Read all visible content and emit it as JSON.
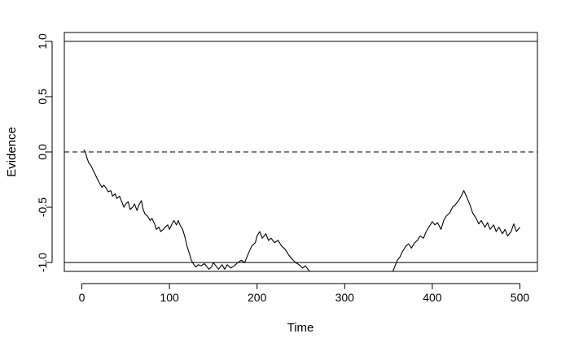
{
  "chart_data": {
    "type": "line",
    "title": "",
    "xlabel": "Time",
    "ylabel": "Evidence",
    "xlim": [
      -20,
      520
    ],
    "ylim": [
      -1.08,
      1.08
    ],
    "xticks": [
      0,
      100,
      200,
      300,
      400,
      500
    ],
    "xtick_labels": [
      "0",
      "100",
      "200",
      "300",
      "400",
      "500"
    ],
    "yticks": [
      -1.0,
      -0.5,
      0.0,
      0.5,
      1.0
    ],
    "ytick_labels": [
      "-1.0",
      "-0.5",
      "0.0",
      "0.5",
      "1.0"
    ],
    "grid": false,
    "legend": "none",
    "reference_lines": [
      {
        "y": 1.0,
        "style": "solid"
      },
      {
        "y": 0.0,
        "style": "dashed"
      },
      {
        "y": -1.0,
        "style": "solid"
      }
    ],
    "series": [
      {
        "color": "#000000",
        "x": [
          2,
          4,
          6,
          8,
          10,
          12,
          15,
          18,
          20,
          23,
          25,
          28,
          30,
          33,
          35,
          38,
          40,
          43,
          45,
          48,
          50,
          53,
          55,
          58,
          60,
          63,
          65,
          68,
          70,
          72,
          75,
          78,
          80,
          83,
          85,
          88,
          90,
          93,
          95,
          98,
          100,
          103,
          105,
          108,
          110,
          112,
          115,
          118,
          120,
          122,
          125,
          128,
          130,
          133,
          136,
          140,
          145,
          148,
          150,
          153,
          156,
          160,
          163,
          166,
          170,
          174,
          178,
          182,
          186,
          190,
          194,
          198,
          200,
          203,
          206,
          210,
          213,
          216,
          220,
          224,
          228,
          232,
          236,
          240,
          244,
          248,
          252,
          255,
          258,
          260
        ],
        "y": [
          0.02,
          0.0,
          -0.06,
          -0.1,
          -0.12,
          -0.15,
          -0.2,
          -0.25,
          -0.28,
          -0.32,
          -0.3,
          -0.33,
          -0.36,
          -0.35,
          -0.4,
          -0.38,
          -0.42,
          -0.4,
          -0.44,
          -0.5,
          -0.47,
          -0.45,
          -0.52,
          -0.5,
          -0.47,
          -0.53,
          -0.48,
          -0.44,
          -0.52,
          -0.56,
          -0.58,
          -0.62,
          -0.6,
          -0.65,
          -0.7,
          -0.68,
          -0.72,
          -0.7,
          -0.68,
          -0.66,
          -0.7,
          -0.65,
          -0.62,
          -0.66,
          -0.62,
          -0.66,
          -0.7,
          -0.78,
          -0.85,
          -0.9,
          -0.98,
          -1.02,
          -1.04,
          -1.02,
          -1.03,
          -1.01,
          -1.06,
          -1.04,
          -1.0,
          -1.03,
          -1.06,
          -1.02,
          -1.06,
          -1.02,
          -1.05,
          -1.03,
          -1.0,
          -0.98,
          -1.0,
          -0.92,
          -0.85,
          -0.82,
          -0.76,
          -0.72,
          -0.78,
          -0.74,
          -0.8,
          -0.78,
          -0.82,
          -0.8,
          -0.85,
          -0.88,
          -0.93,
          -0.97,
          -1.0,
          -1.02,
          -1.05,
          -1.03,
          -1.06,
          -1.08
        ]
      },
      {
        "color": "#000000",
        "x": [
          355,
          358,
          360,
          363,
          366,
          370,
          373,
          376,
          380,
          383,
          386,
          390,
          393,
          396,
          400,
          403,
          406,
          410,
          413,
          416,
          420,
          423,
          426,
          430,
          433,
          436,
          440,
          443,
          446,
          450,
          453,
          456,
          460,
          463,
          466,
          470,
          473,
          476,
          480,
          483,
          486,
          490,
          493,
          496,
          500
        ],
        "y": [
          -1.08,
          -1.02,
          -0.98,
          -0.95,
          -0.9,
          -0.85,
          -0.83,
          -0.87,
          -0.82,
          -0.8,
          -0.76,
          -0.78,
          -0.72,
          -0.68,
          -0.63,
          -0.66,
          -0.64,
          -0.7,
          -0.62,
          -0.58,
          -0.55,
          -0.5,
          -0.48,
          -0.44,
          -0.4,
          -0.35,
          -0.42,
          -0.48,
          -0.55,
          -0.6,
          -0.65,
          -0.62,
          -0.68,
          -0.64,
          -0.7,
          -0.66,
          -0.72,
          -0.68,
          -0.74,
          -0.7,
          -0.76,
          -0.72,
          -0.65,
          -0.72,
          -0.68
        ]
      }
    ]
  }
}
